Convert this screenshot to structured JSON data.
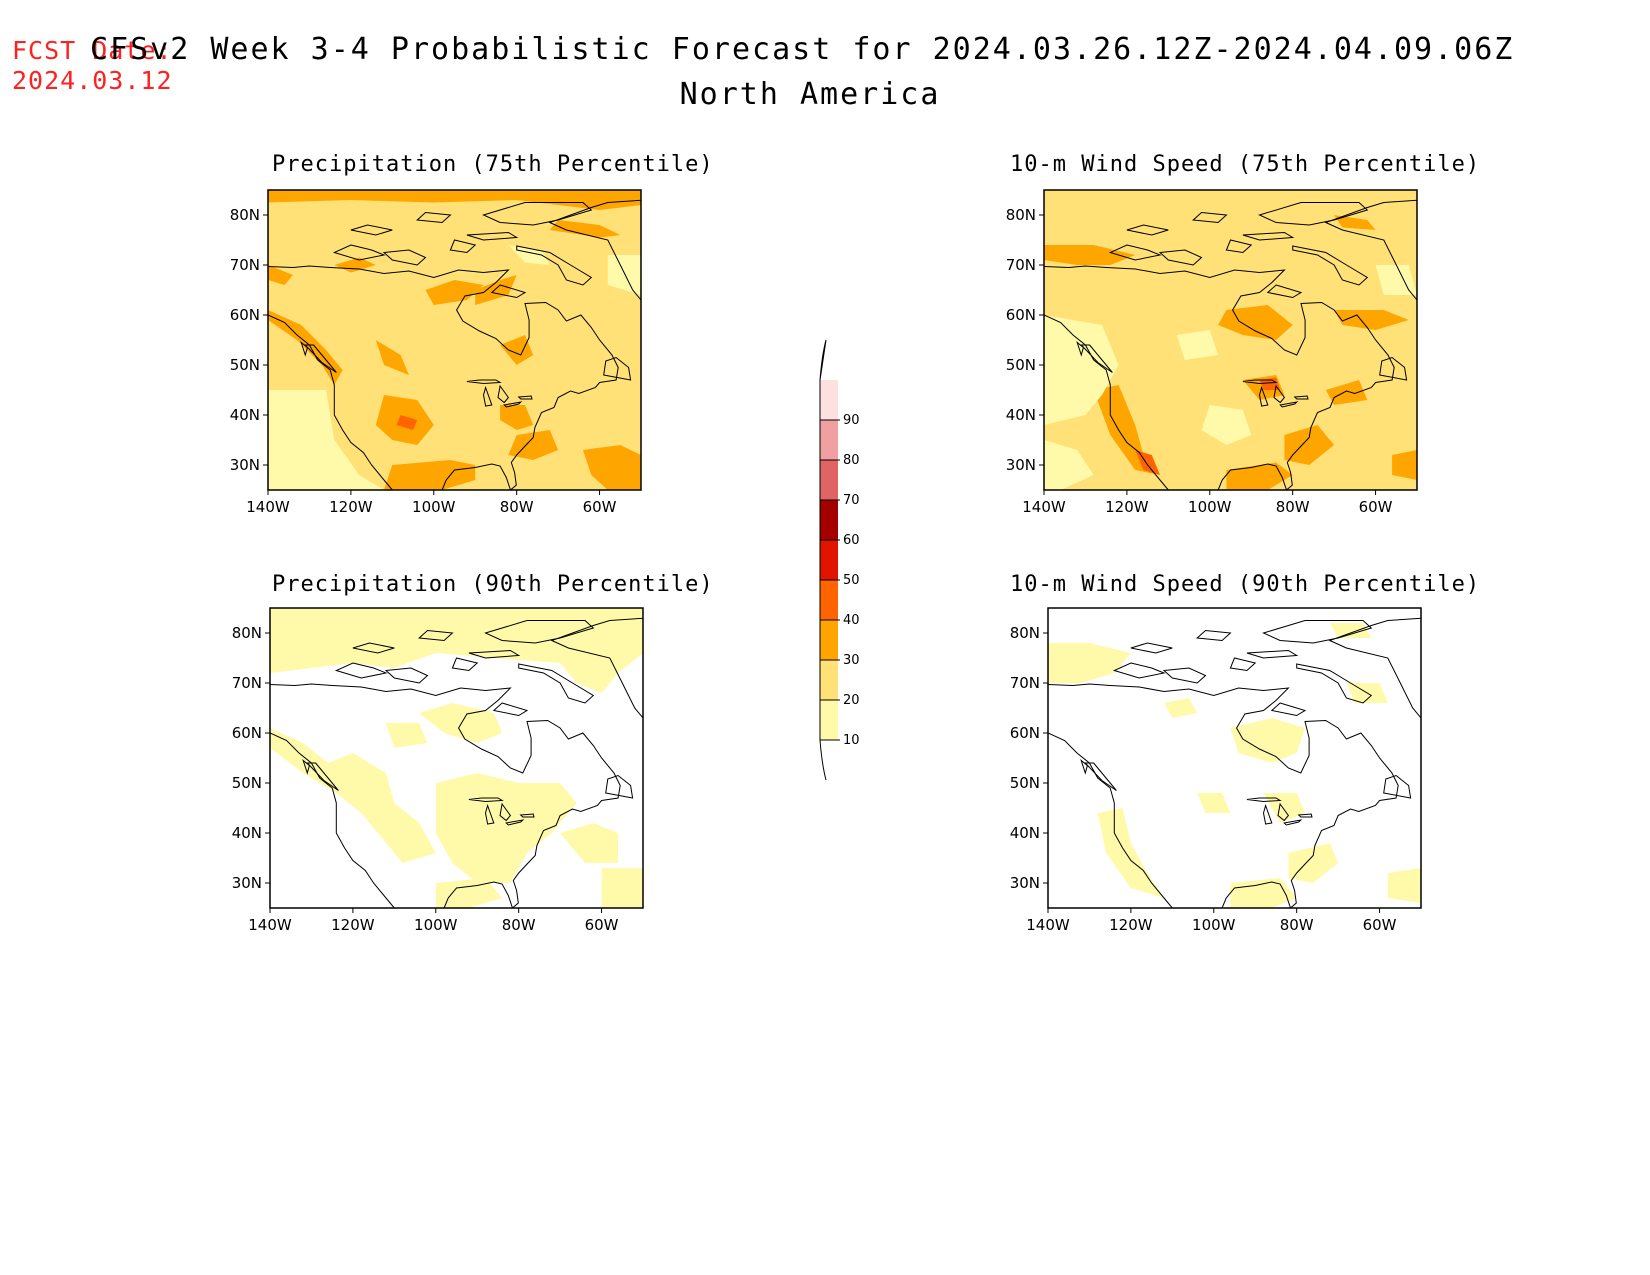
{
  "header": {
    "fcst_label": "FCST Date:",
    "fcst_date": "2024.03.12",
    "title": "CFSv2 Week 3-4 Probabilistic Forecast for 2024.03.26.12Z-2024.04.09.06Z",
    "subtitle": "North America"
  },
  "colors": {
    "c10": "#fffaaa",
    "c20": "#ffe178",
    "c30": "#ffa500",
    "c40": "#ff6400",
    "c50": "#e11400",
    "c60": "#a50000",
    "c70": "#e16464",
    "c80": "#f0a0a0",
    "c90": "#ffe0e0"
  },
  "colorbar": {
    "levels": [
      "10",
      "20",
      "30",
      "40",
      "50",
      "60",
      "70",
      "80",
      "90"
    ]
  },
  "axes": {
    "lat_labels": [
      "30N",
      "40N",
      "50N",
      "60N",
      "70N",
      "80N"
    ],
    "lon_labels": [
      "140W",
      "120W",
      "100W",
      "80W",
      "60W"
    ]
  },
  "panels": [
    {
      "title": "Precipitation (75th Percentile)",
      "base": "c20",
      "patches": "precip75"
    },
    {
      "title": "10-m Wind Speed (75th Percentile)",
      "base": "c20",
      "patches": "wind75"
    },
    {
      "title": "Precipitation (90th Percentile)",
      "base": "white",
      "patches": "precip90"
    },
    {
      "title": "10-m Wind Speed (90th Percentile)",
      "base": "white",
      "patches": "wind90"
    }
  ]
}
